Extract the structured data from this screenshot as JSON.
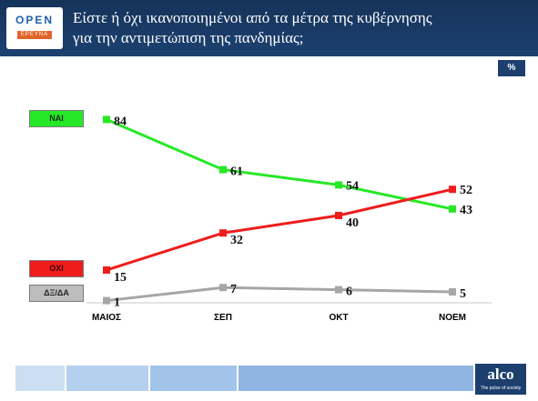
{
  "header": {
    "logo_top": "OPEN",
    "logo_bottom": "ΕΡΕΥΝΑ",
    "title_line1": "Είστε ή όχι ικανοποιημένοι από τα μέτρα της κυβέρνησης",
    "title_line2": "για την αντιμετώπιση της πανδημίας;"
  },
  "unit_badge": "%",
  "footer": {
    "brand": "alco",
    "tagline": "The pulse of society"
  },
  "colors": {
    "header": "#1c4170",
    "nai": "#26e826",
    "oxi": "#ef1c1c",
    "dk": "#a6a6a6",
    "gridline": "#c8c8c8"
  },
  "chart_data": {
    "type": "line",
    "categories": [
      "ΜΑΙΟΣ",
      "ΣΕΠ",
      "ΟΚΤ",
      "ΝΟΕΜ"
    ],
    "series": [
      {
        "name": "ΝΑΙ",
        "values": [
          84,
          61,
          54,
          43
        ],
        "color": "#26e826"
      },
      {
        "name": "ΟΧΙ",
        "values": [
          15,
          32,
          40,
          52
        ],
        "color": "#ef1c1c"
      },
      {
        "name": "ΔΞ/ΔΑ",
        "values": [
          1,
          7,
          6,
          5
        ],
        "color": "#a6a6a6"
      }
    ],
    "ylim": [
      0,
      100
    ],
    "grid": false,
    "legend_placement": "left"
  }
}
